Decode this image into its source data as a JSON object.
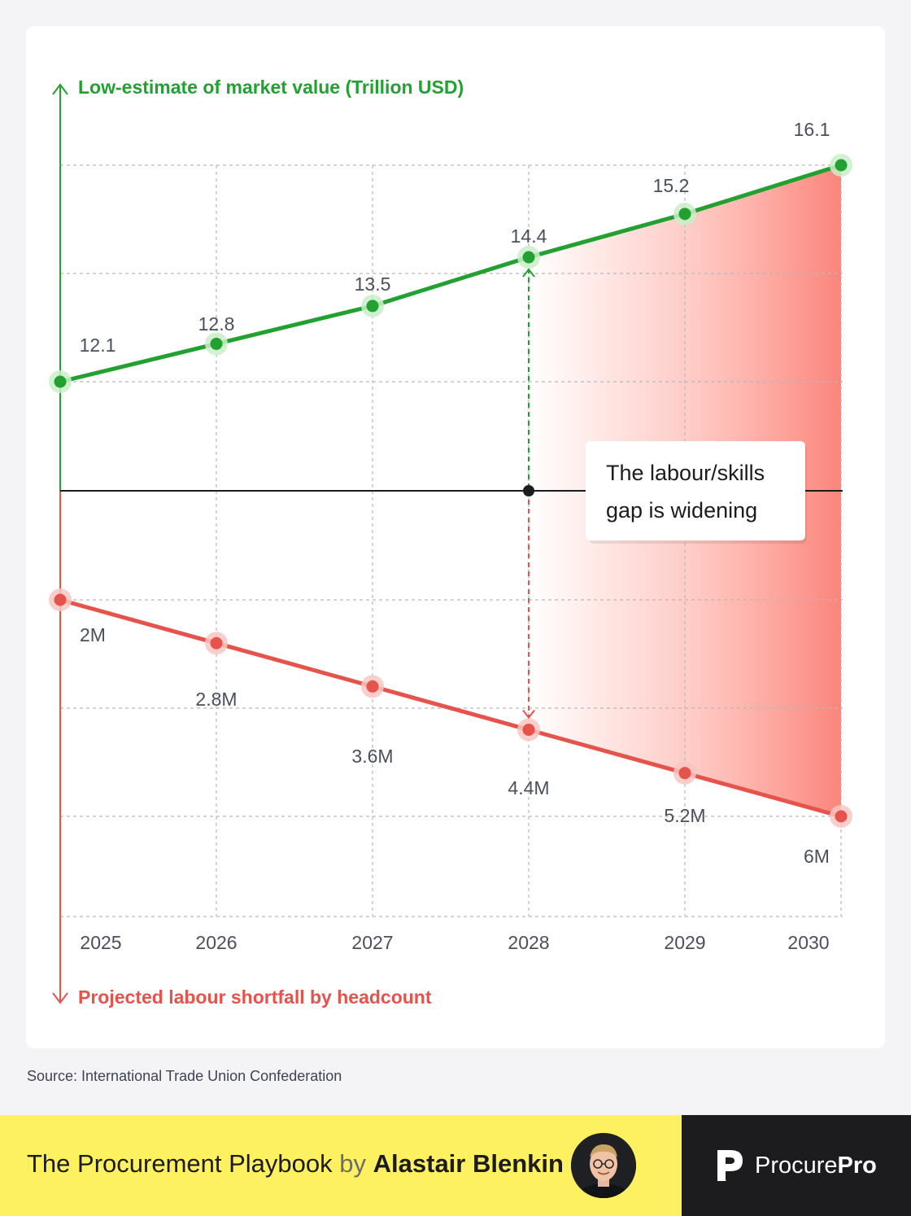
{
  "chart_data": {
    "type": "line",
    "categories": [
      "2025",
      "2026",
      "2027",
      "2028",
      "2029",
      "2030"
    ],
    "series": [
      {
        "name": "Low-estimate of market value (Trillion USD)",
        "axis": "up",
        "color": "#22a131",
        "values": [
          12.1,
          12.8,
          13.5,
          14.4,
          15.2,
          16.1
        ],
        "labels": [
          "12.1",
          "12.8",
          "13.5",
          "14.4",
          "15.2",
          "16.1"
        ]
      },
      {
        "name": "Projected labour shortfall by headcount",
        "axis": "down",
        "color": "#e5534b",
        "values": [
          2,
          2.8,
          3.6,
          4.4,
          5.2,
          6
        ],
        "labels": [
          "2M",
          "2.8M",
          "3.6M",
          "4.4M",
          "5.2M",
          "6M"
        ]
      }
    ],
    "annotation": {
      "text_line1": "The labour/skills",
      "text_line2": "gap is widening",
      "at_category": "2028"
    },
    "shaded_region": "gap between series from 2028 to 2030",
    "grid": true
  },
  "footer": {
    "source": "Source: International Trade Union Confederation",
    "title": "The Procurement Playbook",
    "by": "by",
    "author": "Alastair Blenkin",
    "brand_regular": "Procure",
    "brand_bold": "Pro"
  }
}
